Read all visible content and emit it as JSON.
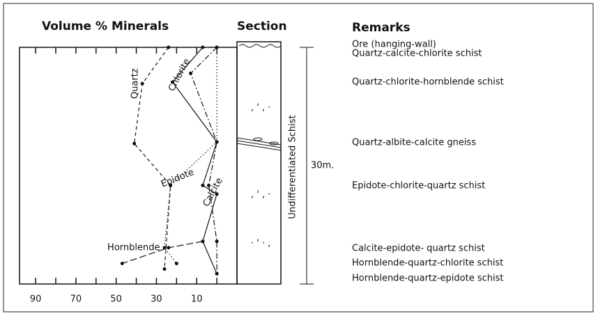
{
  "chart_data": {
    "type": "line",
    "title": "Volume % Minerals",
    "section_title": "Section",
    "remarks_title": "Remarks",
    "unit_label": "Undifferentiated Schist",
    "remarks": [
      "Ore (hanging-wall)",
      "Quartz-calcite-chlorite schist",
      "Quartz-chlorite-hornblende schist",
      "Quartz-albite-calcite gneiss",
      "Epidote-chlorite-quartz schist",
      "Calcite-epidote- quartz schist",
      "Hornblende-quartz-chlorite schist",
      "Hornblende-quartz-epidote schist"
    ],
    "xlim": [
      98,
      -10
    ],
    "xticks": [
      90,
      70,
      50,
      30,
      10
    ],
    "minor_xticks": [
      80,
      60,
      40,
      20,
      0
    ],
    "ylim": [
      0,
      30
    ],
    "yticks": [
      {
        "value": 30,
        "label": "30m."
      }
    ],
    "series": [
      {
        "name": "Quartz",
        "color": "#111111",
        "style": "dashed",
        "values": [
          24,
          37,
          41,
          23,
          26
        ],
        "depth": [
          0,
          4.6,
          12.2,
          17.5,
          28.1
        ]
      },
      {
        "name": "Chlorite",
        "color": "#111111",
        "style": "solid",
        "values": [
          7,
          22,
          0,
          7,
          0,
          7,
          0
        ],
        "depth": [
          0,
          4.4,
          12.0,
          17.5,
          18.6,
          24.6,
          28.7
        ]
      },
      {
        "name": "Epidote",
        "color": "#111111",
        "style": "dotted",
        "values": [
          0,
          0,
          23,
          26,
          20
        ],
        "depth": [
          0,
          12.0,
          17.5,
          25.4,
          27.4
        ]
      },
      {
        "name": "Calcite",
        "color": "#111111",
        "style": "dashdot",
        "values": [
          0,
          13,
          0,
          4,
          0,
          0
        ],
        "depth": [
          0,
          3.3,
          12.0,
          17.5,
          24.6,
          28.7
        ]
      },
      {
        "name": "Hornblende",
        "color": "#111111",
        "style": "longdash",
        "values": [
          7,
          24,
          47
        ],
        "depth": [
          24.6,
          25.4,
          27.4
        ]
      }
    ]
  }
}
